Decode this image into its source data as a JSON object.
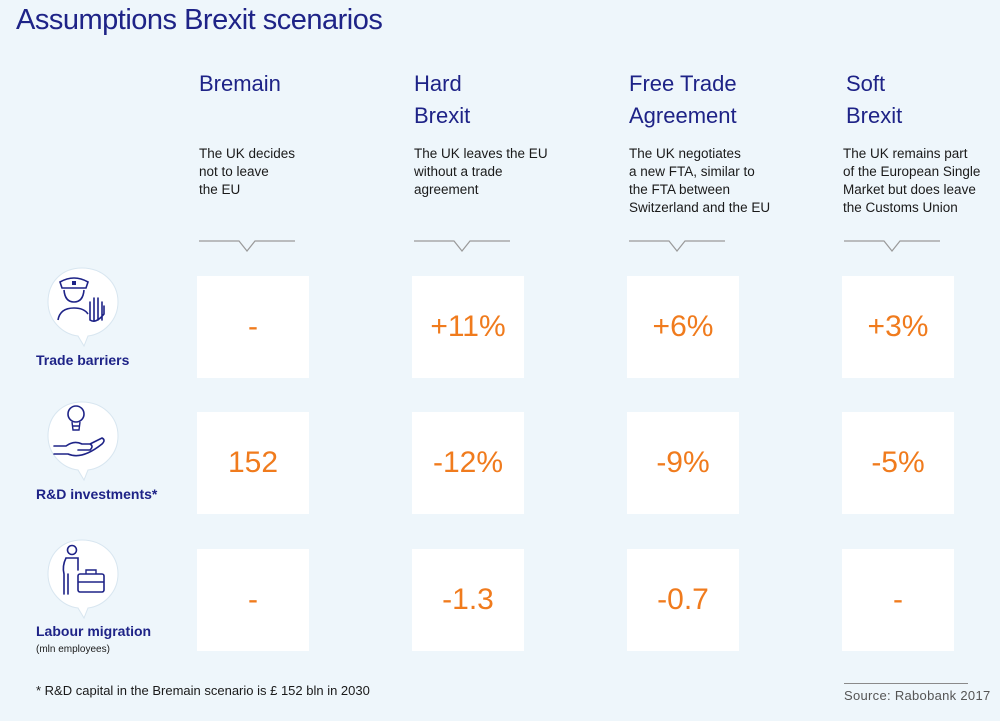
{
  "title": "Assumptions Brexit scenarios",
  "chart_data": {
    "type": "table",
    "columns": [
      {
        "name_lines": [
          "Bremain"
        ],
        "description_lines": [
          "The UK decides",
          "not to leave",
          "the EU"
        ]
      },
      {
        "name_lines": [
          "Hard",
          "Brexit"
        ],
        "description_lines": [
          "The UK leaves the EU",
          "without a trade",
          "agreement"
        ]
      },
      {
        "name_lines": [
          "Free Trade",
          "Agreement"
        ],
        "description_lines": [
          "The UK negotiates",
          "a new FTA, similar to",
          "the FTA between",
          "Switzerland and the EU"
        ]
      },
      {
        "name_lines": [
          "Soft",
          "Brexit"
        ],
        "description_lines": [
          "The UK remains part",
          "of the European Single",
          "Market but does leave",
          "the Customs Union"
        ]
      }
    ],
    "rows": [
      {
        "label": "Trade barriers",
        "sublabel": "",
        "icon": "police-officer-stop-hand-icon",
        "values": [
          "-",
          "+11%",
          "+6%",
          "+3%"
        ]
      },
      {
        "label": "R&D investments*",
        "sublabel": "",
        "icon": "lightbulb-hand-icon",
        "values": [
          "152",
          "-12%",
          "-9%",
          "-5%"
        ]
      },
      {
        "label": "Labour migration",
        "sublabel": "(mln employees)",
        "icon": "person-suitcase-icon",
        "values": [
          "-",
          "-1.3",
          "-0.7",
          "-"
        ]
      }
    ]
  },
  "footnote": "* R&D capital in the Bremain scenario is £ 152 bln in 2030",
  "source": "Source: Rabobank 2017",
  "colors": {
    "title": "#1e2387",
    "value": "#f07b1d",
    "background": "#eef6fb",
    "cell": "#ffffff"
  }
}
